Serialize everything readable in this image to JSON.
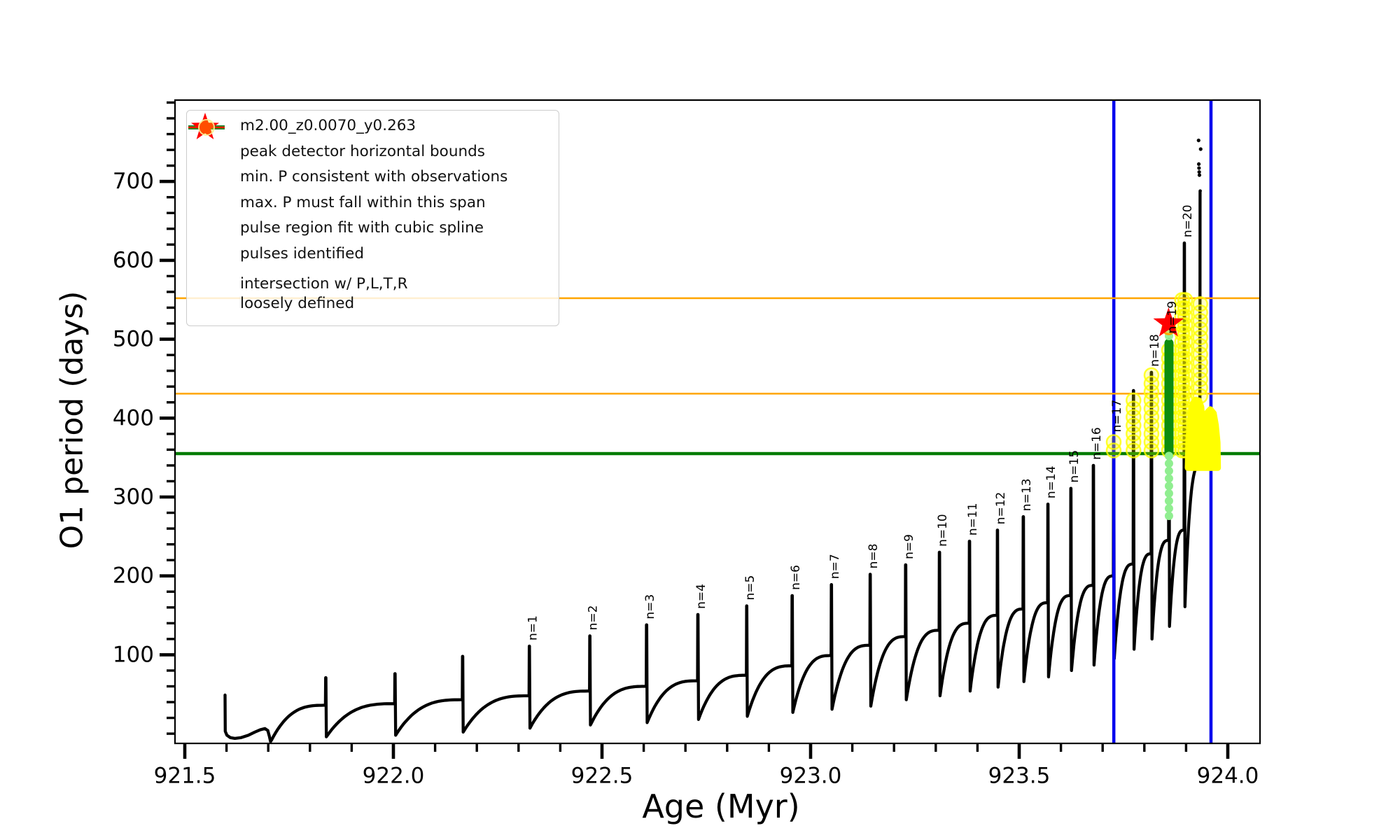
{
  "colors": {
    "track": "#000000",
    "peak_bounds": "#0000ee",
    "min_P": "#007b00",
    "max_P_span": "#ffa500",
    "spline_fit": "#90ee90",
    "spline_dense": "#0e8c0e",
    "pulse_star": "#ff0000",
    "intersection": "#ffff00",
    "star_ring_edge": "#ffa500",
    "star_ring_fill": "#cfe06e"
  },
  "legend": {
    "items": [
      {
        "label": "m2.00_z0.0070_y0.263",
        "marker": "line-dot",
        "color": "#000000"
      },
      {
        "label": "peak detector horizontal bounds",
        "marker": "thick-line",
        "color": "#0000ee"
      },
      {
        "label": "min. P consistent with observations",
        "marker": "thick-line",
        "color": "#007b00"
      },
      {
        "label": "max. P must fall within this span",
        "marker": "thin-line",
        "color": "#ffa500"
      },
      {
        "label": "pulse region fit with cubic spline",
        "marker": "dot",
        "color": "#90ee90"
      },
      {
        "label": "pulses identified",
        "marker": "star-line",
        "color": "#ff0000"
      },
      {
        "label": "intersection w/ P,L,T,R\nloosely defined",
        "marker": "big-dot",
        "color": "#ffff00"
      }
    ]
  },
  "chart_data": {
    "type": "line",
    "title": "",
    "xlabel": "Age (Myr)",
    "ylabel": "O1 period (days)",
    "series_label": "m2.00_z0.0070_y0.263",
    "xlim": [
      921.4765,
      924.077
    ],
    "ylim": [
      -12,
      803
    ],
    "x_major_ticks": [
      921.5,
      922.0,
      922.5,
      923.0,
      923.5,
      924.0
    ],
    "x_tick_labels": [
      "921.5",
      "922.0",
      "922.5",
      "923.0",
      "923.5",
      "924.0"
    ],
    "x_minor_step": 0.1,
    "y_major_ticks": [
      100,
      200,
      300,
      400,
      500,
      600,
      700
    ],
    "y_tick_labels": [
      "100",
      "200",
      "300",
      "400",
      "500",
      "600",
      "700"
    ],
    "y_minor_step": 20,
    "grid": false,
    "legend_position": "upper left",
    "peak_detector_bounds_x": [
      923.7268,
      923.9597
    ],
    "min_P_consistent_y": 355,
    "max_P_span_y": [
      431,
      552
    ],
    "track_start": [
      [
        921.5965,
        49
      ],
      [
        921.597,
        3
      ],
      [
        921.601,
        -2
      ],
      [
        921.609,
        -5
      ],
      [
        921.62,
        -6
      ],
      [
        921.635,
        -5
      ],
      [
        921.652,
        -2
      ],
      [
        921.668,
        2
      ],
      [
        921.681,
        5
      ],
      [
        921.692,
        6.5
      ],
      [
        921.699,
        4
      ],
      [
        921.703,
        -4
      ],
      [
        921.7055,
        -10
      ],
      [
        921.708,
        -8
      ]
    ],
    "pulses": [
      {
        "label": null,
        "age": 921.838,
        "peak": 71,
        "shoulder": 36,
        "dip_after": -4
      },
      {
        "label": null,
        "age": 922.004,
        "peak": 76,
        "shoulder": 38,
        "dip_after": -2
      },
      {
        "label": null,
        "age": 922.166,
        "peak": 98,
        "shoulder": 43,
        "dip_after": 2
      },
      {
        "label": "n=1",
        "age": 922.326,
        "peak": 111,
        "shoulder": 48,
        "dip_after": 7
      },
      {
        "label": "n=2",
        "age": 922.471,
        "peak": 124,
        "shoulder": 54,
        "dip_after": 11
      },
      {
        "label": "n=3",
        "age": 922.607,
        "peak": 138,
        "shoulder": 60,
        "dip_after": 14
      },
      {
        "label": "n=4",
        "age": 922.73,
        "peak": 151,
        "shoulder": 67,
        "dip_after": 18
      },
      {
        "label": "n=5",
        "age": 922.847,
        "peak": 162,
        "shoulder": 74,
        "dip_after": 22
      },
      {
        "label": "n=6",
        "age": 922.956,
        "peak": 175,
        "shoulder": 86,
        "dip_after": 27
      },
      {
        "label": "n=7",
        "age": 923.05,
        "peak": 189,
        "shoulder": 99,
        "dip_after": 31
      },
      {
        "label": "n=8",
        "age": 923.143,
        "peak": 202,
        "shoulder": 112,
        "dip_after": 35
      },
      {
        "label": "n=9",
        "age": 923.228,
        "peak": 214,
        "shoulder": 123,
        "dip_after": 43
      },
      {
        "label": "n=10",
        "age": 923.309,
        "peak": 230,
        "shoulder": 131,
        "dip_after": 48
      },
      {
        "label": "n=11",
        "age": 923.381,
        "peak": 244,
        "shoulder": 140,
        "dip_after": 54
      },
      {
        "label": "n=12",
        "age": 923.448,
        "peak": 258,
        "shoulder": 150,
        "dip_after": 59
      },
      {
        "label": "n=13",
        "age": 923.51,
        "peak": 275,
        "shoulder": 158,
        "dip_after": 66
      },
      {
        "label": "n=14",
        "age": 923.569,
        "peak": 291,
        "shoulder": 166,
        "dip_after": 72
      },
      {
        "label": "n=15",
        "age": 923.624,
        "peak": 311,
        "shoulder": 175,
        "dip_after": 80
      },
      {
        "label": "n=16",
        "age": 923.678,
        "peak": 340,
        "shoulder": 188,
        "dip_after": 87
      },
      {
        "label": "n=17",
        "age": 923.7265,
        "peak": 375,
        "shoulder": 200,
        "dip_after": 95
      },
      {
        "label": null,
        "age": 923.774,
        "peak": 435,
        "shoulder": 215,
        "dip_after": 107
      },
      {
        "label": "n=18",
        "age": 923.817,
        "peak": 458,
        "shoulder": 228,
        "dip_after": 120
      },
      {
        "label": "n=19",
        "age": 923.859,
        "peak": 500,
        "shoulder": 245,
        "dip_after": 136
      },
      {
        "label": "n=20",
        "age": 923.896,
        "peak": 622,
        "shoulder": 258,
        "dip_after": 161
      },
      {
        "label": null,
        "age": 923.934,
        "peak": 688,
        "shoulder": 340,
        "dip_after": null
      }
    ],
    "end_dots": [
      [
        923.93,
        752
      ],
      [
        923.935,
        741
      ],
      [
        923.9305,
        722
      ],
      [
        923.931,
        717
      ],
      [
        923.9315,
        712
      ],
      [
        923.932,
        708
      ]
    ],
    "pulses_identified_star": {
      "age": 923.858,
      "period": 520
    },
    "star_ring": {
      "age": 923.858,
      "period": 514
    },
    "spline_fit_region": {
      "age": 923.859,
      "dense_span": [
        358,
        495
      ],
      "dot_span": [
        267,
        352
      ],
      "dots_above": [
        504,
        512
      ]
    },
    "intersection_columns": [
      {
        "age": 923.7265,
        "from": 355,
        "to": 375
      },
      {
        "age": 923.774,
        "from": 355,
        "to": 433
      },
      {
        "age": 923.817,
        "from": 355,
        "to": 457
      },
      {
        "age": 923.859,
        "from": 355,
        "to": 495
      },
      {
        "age": 923.8905,
        "from": 355,
        "to": 552
      },
      {
        "age": 923.898,
        "from": 355,
        "to": 552
      },
      {
        "age": 923.934,
        "from": 424,
        "to": 552
      }
    ],
    "intersection_blob": [
      [
        923.9044,
        337
      ],
      [
        923.906,
        373
      ],
      [
        923.911,
        401
      ],
      [
        923.916,
        418
      ],
      [
        923.923,
        423
      ],
      [
        923.931,
        422
      ],
      [
        923.936,
        414
      ],
      [
        923.94,
        387
      ],
      [
        923.941,
        358
      ],
      [
        923.945,
        366
      ],
      [
        923.946,
        392
      ],
      [
        923.951,
        407
      ],
      [
        923.958,
        411
      ],
      [
        923.966,
        406
      ],
      [
        923.971,
        391
      ],
      [
        923.975,
        369
      ],
      [
        923.976,
        337
      ]
    ]
  }
}
